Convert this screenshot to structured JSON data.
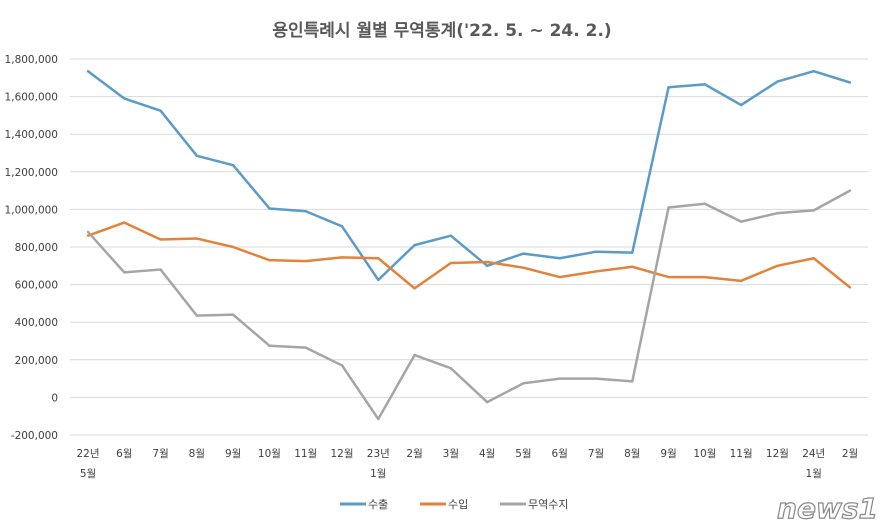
{
  "chart_data": {
    "type": "line",
    "title": "용인특례시 월별 무역통계('22. 5. ~ 24. 2.)",
    "xlabel": "",
    "ylabel": "",
    "categories": [
      [
        "22년",
        "5월"
      ],
      [
        "6월"
      ],
      [
        "7월"
      ],
      [
        "8월"
      ],
      [
        "9월"
      ],
      [
        "10월"
      ],
      [
        "11월"
      ],
      [
        "12월"
      ],
      [
        "23년",
        "1월"
      ],
      [
        "2월"
      ],
      [
        "3월"
      ],
      [
        "4월"
      ],
      [
        "5월"
      ],
      [
        "6월"
      ],
      [
        "7월"
      ],
      [
        "8월"
      ],
      [
        "9월"
      ],
      [
        "10월"
      ],
      [
        "11월"
      ],
      [
        "12월"
      ],
      [
        "24년",
        "1월"
      ],
      [
        "2월"
      ]
    ],
    "ylim": [
      -200000,
      1800000
    ],
    "yticks": [
      -200000,
      0,
      200000,
      400000,
      600000,
      800000,
      1000000,
      1200000,
      1400000,
      1600000,
      1800000
    ],
    "ytick_labels": [
      "-200,000",
      "0",
      "200,000",
      "400,000",
      "600,000",
      "800,000",
      "1,000,000",
      "1,200,000",
      "1,400,000",
      "1,600,000",
      "1,800,000"
    ],
    "grid": true,
    "legend_position": "bottom",
    "series": [
      {
        "name": "수출",
        "color": "#5b9bc8",
        "values": [
          1735000,
          1590000,
          1525000,
          1285000,
          1235000,
          1005000,
          990000,
          910000,
          625000,
          810000,
          860000,
          700000,
          765000,
          740000,
          775000,
          770000,
          1650000,
          1665000,
          1555000,
          1680000,
          1735000,
          1675000
        ]
      },
      {
        "name": "수입",
        "color": "#e3823a",
        "values": [
          860000,
          930000,
          840000,
          845000,
          800000,
          730000,
          725000,
          745000,
          740000,
          580000,
          715000,
          720000,
          690000,
          640000,
          670000,
          695000,
          640000,
          640000,
          620000,
          700000,
          740000,
          585000
        ]
      },
      {
        "name": "무역수지",
        "color": "#a5a5a5",
        "values": [
          880000,
          665000,
          680000,
          435000,
          440000,
          275000,
          265000,
          170000,
          -115000,
          225000,
          155000,
          -25000,
          75000,
          100000,
          100000,
          85000,
          1010000,
          1030000,
          935000,
          980000,
          995000,
          1100000
        ]
      }
    ]
  },
  "watermark": "news1"
}
